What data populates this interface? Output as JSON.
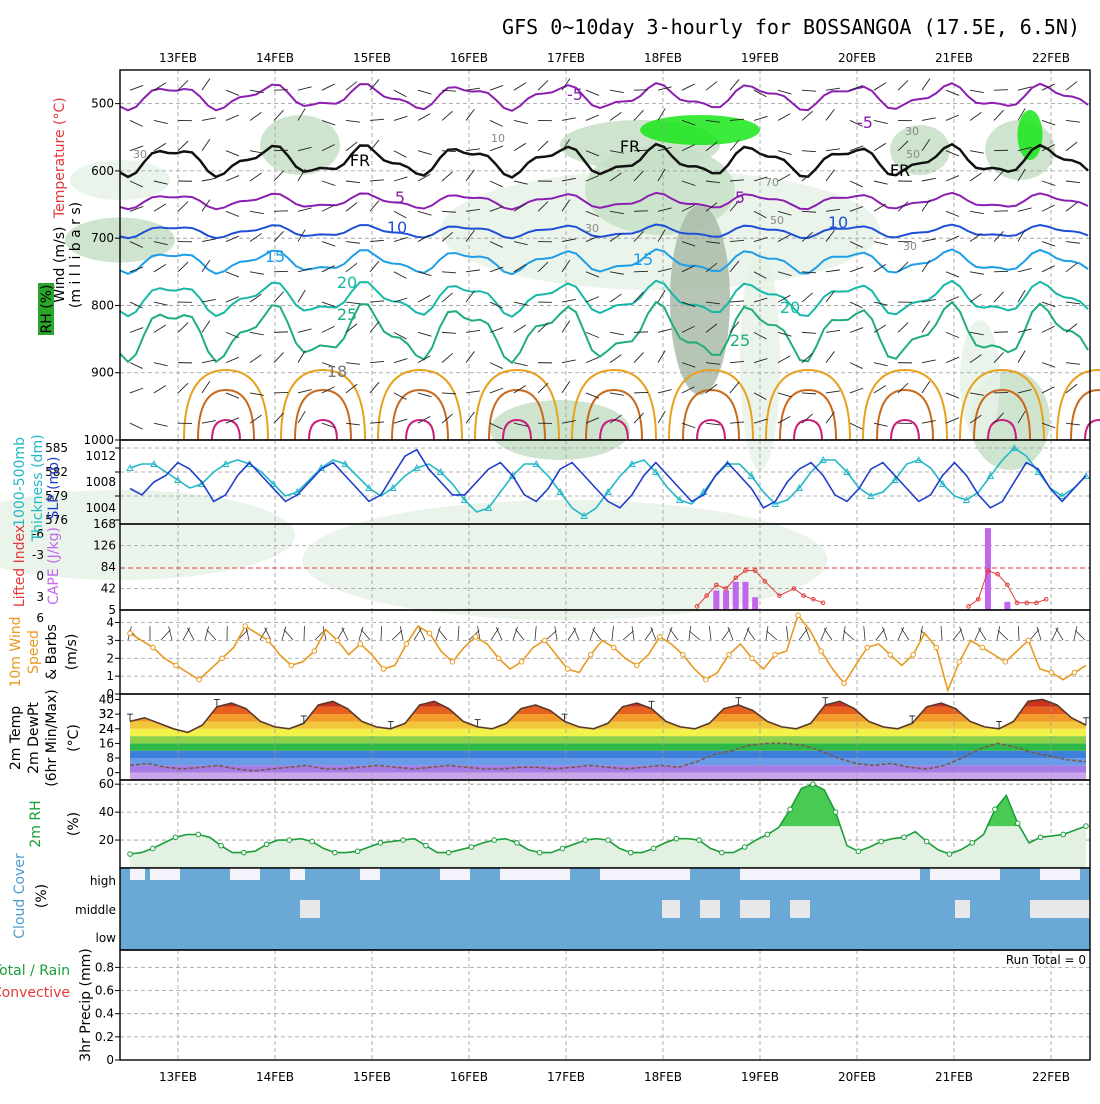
{
  "title": "GFS 0~10day 3-hourly for BOSSANGOA (17.5E, 6.5N)",
  "date_labels": [
    "13FEB",
    "14FEB",
    "15FEB",
    "16FEB",
    "17FEB",
    "18FEB",
    "19FEB",
    "20FEB",
    "21FEB",
    "22FEB"
  ],
  "colors": {
    "rh_light": "#e6f2e6",
    "rh_mid": "#c7dfc7",
    "rh_grey": "#a9bba9",
    "rh_bright": "#19e619",
    "isotherm_purple": "#8a1fb0",
    "isotherm_blue": "#1f4fd6",
    "isotherm_lightblue": "#1e9ee6",
    "isotherm_teal": "#17b8a6",
    "isotherm_green": "#1fae7a",
    "isotherm_orange": "#e6a21e",
    "slp": "#1e3dc8",
    "thickness": "#22b8c8",
    "cape": "#c266ee",
    "lifted": "#e23a3a",
    "wind10": "#e8991f",
    "rh2m": "#1b9e3a",
    "cloud": "#6aa8d6"
  },
  "chart_data": [
    {
      "type": "contour",
      "panel": "upper-air",
      "ylabel_parts": [
        "Wind (m/s)",
        "Temperature (°C)",
        "RH (%)",
        "(m i l l i b a r s)"
      ],
      "ylim": [
        1000,
        450
      ],
      "yticks": [
        500,
        600,
        700,
        800,
        900,
        1000
      ],
      "isotherm_labels": [
        "-5",
        "-5",
        "FR",
        "FR",
        "FR",
        "5",
        "5",
        "10",
        "10",
        "15",
        "15",
        "20",
        "20",
        "25",
        "25",
        "18"
      ],
      "isotherm_levels_hpa": {
        "-5": 490,
        "0": 585,
        "5": 645,
        "10": 690,
        "15": 735,
        "20": 790,
        "25": 840
      },
      "rh_labels": [
        "30",
        "30",
        "10",
        "70",
        "50",
        "50",
        "30",
        "30"
      ]
    },
    {
      "type": "line",
      "panel": "thickness-slp",
      "ylabel_parts": [
        "1000-500mb",
        "Thickness (dm)",
        "SLP (mb)"
      ],
      "thickness_ticks": [
        576,
        579,
        582,
        585
      ],
      "slp_ticks": [
        1004,
        1008,
        1012
      ],
      "series": [
        {
          "name": "SLP (mb)",
          "values": [
            1007,
            1006,
            1008,
            1009,
            1011,
            1010,
            1008,
            1005,
            1006,
            1009,
            1011,
            1009,
            1007,
            1005,
            1006,
            1008,
            1010,
            1011,
            1009,
            1007,
            1005,
            1006,
            1009,
            1012,
            1013,
            1010,
            1008,
            1006,
            1006,
            1008,
            1010,
            1011,
            1009,
            1006,
            1005,
            1007,
            1010,
            1011,
            1009,
            1007,
            1005,
            1004,
            1006,
            1009,
            1011,
            1009,
            1007,
            1005,
            1006,
            1009,
            1011,
            1009,
            1007,
            1004,
            1005,
            1008,
            1010,
            1011,
            1009,
            1006,
            1005,
            1007,
            1010,
            1011,
            1009,
            1007,
            1005,
            1006,
            1009,
            1011,
            1009,
            1006,
            1004,
            1005,
            1008,
            1011,
            1010,
            1007,
            1005,
            1007,
            1009
          ]
        },
        {
          "name": "Thickness (dm)",
          "values": [
            582.5,
            583,
            583,
            582,
            581,
            580,
            580.5,
            582,
            583,
            583.5,
            583,
            582,
            580.5,
            579,
            579.5,
            581,
            582.5,
            583.5,
            583,
            581.5,
            580,
            579,
            580,
            581.5,
            582.5,
            583,
            582,
            580.5,
            578.5,
            577,
            577.5,
            579.5,
            581.5,
            583,
            583,
            581.5,
            579.5,
            577.5,
            576.5,
            577.5,
            579.5,
            581.5,
            583,
            583.5,
            582,
            580,
            578.5,
            578,
            579.5,
            581.5,
            583,
            583,
            581.5,
            579.5,
            578,
            578.5,
            580,
            582,
            583.5,
            583.5,
            582,
            580,
            579,
            579.5,
            581,
            583,
            583.5,
            582.5,
            580.5,
            579,
            578.5,
            579.5,
            581.5,
            583.5,
            585,
            584,
            582,
            580,
            579,
            580,
            581.5
          ]
        }
      ]
    },
    {
      "type": "bar",
      "panel": "cape-lifted",
      "ylabel_parts": [
        "Lifted Index",
        "CAPE (J/kg)"
      ],
      "cape_ticks": [
        42,
        84,
        126,
        168
      ],
      "lifted_ticks": [
        "-6",
        "-3",
        "0",
        "3",
        "6"
      ],
      "series": [
        {
          "name": "CAPE (J/kg)",
          "x": [
            5.6,
            5.7,
            5.8,
            5.9,
            6.0
          ],
          "values": [
            38,
            38,
            55,
            55,
            25
          ]
        },
        {
          "name": "CAPE (J/kg) 21FEB",
          "x": [
            8.4,
            8.6
          ],
          "values": [
            160,
            16
          ]
        },
        {
          "name": "Lifted Index",
          "x": [
            5.4,
            5.5,
            5.6,
            5.7,
            5.8,
            5.9,
            6.0,
            6.1,
            6.25,
            6.4,
            6.5,
            6.6,
            6.7,
            8.2,
            8.3,
            8.4,
            8.5,
            8.6,
            8.7,
            8.8,
            8.9,
            9.0
          ],
          "values": [
            5.5,
            4,
            2.5,
            3,
            1.5,
            0.5,
            0.5,
            2,
            4,
            3,
            4,
            4.5,
            5,
            5.5,
            4.5,
            0.5,
            1,
            2.5,
            5,
            5,
            5,
            4.5
          ]
        }
      ]
    },
    {
      "type": "line",
      "panel": "wind10",
      "ylabel_parts": [
        "10m Wind",
        "Speed",
        "& Barbs",
        "(m/s)"
      ],
      "yticks": [
        0,
        1,
        2,
        3,
        4
      ],
      "series": [
        {
          "name": "10m wind speed (m/s)",
          "values": [
            3.4,
            3,
            2.6,
            2,
            1.6,
            1.2,
            0.8,
            1.4,
            2,
            2.6,
            3.8,
            3.4,
            3,
            2.2,
            1.6,
            1.8,
            2.4,
            3.6,
            3,
            2.2,
            2.8,
            2.2,
            1.4,
            1.6,
            2.8,
            3.8,
            3.4,
            2.4,
            1.8,
            2.6,
            3.2,
            2.8,
            2,
            1.4,
            1.8,
            2.6,
            3,
            2.2,
            1.4,
            1.2,
            2.2,
            3,
            2.6,
            2,
            1.6,
            2.2,
            3.2,
            2.8,
            2.2,
            1.4,
            0.8,
            1.2,
            2.2,
            2.8,
            2,
            1.4,
            2.2,
            2.4,
            4.4,
            3.6,
            2.4,
            1.4,
            0.6,
            1.6,
            2.6,
            2.8,
            2.2,
            1.6,
            2.2,
            3.4,
            2.6,
            0.2,
            1.8,
            3,
            2.6,
            2.2,
            1.8,
            2.4,
            3,
            1.4,
            1.2,
            0.8,
            1.2,
            1.6
          ]
        }
      ]
    },
    {
      "type": "area",
      "panel": "temp2m",
      "ylabel_parts": [
        "2m Temp",
        "2m DewPt",
        "(6hr Min/Max)",
        "(°C)"
      ],
      "yticks": [
        0,
        8,
        16,
        24,
        32,
        40
      ],
      "series": [
        {
          "name": "2m Temp (°C)",
          "values": [
            28,
            30,
            27,
            24,
            22,
            26,
            36,
            38,
            35,
            28,
            25,
            24,
            27,
            37,
            39,
            35,
            28,
            25,
            24,
            27,
            37,
            39,
            35,
            28,
            25,
            24,
            27,
            35,
            37,
            34,
            28,
            25,
            24,
            27,
            36,
            38,
            35,
            28,
            25,
            24,
            27,
            35,
            37,
            34,
            28,
            25,
            24,
            27,
            37,
            39,
            35,
            28,
            25,
            24,
            27,
            36,
            38,
            35,
            28,
            25,
            24,
            28,
            39,
            40,
            37,
            30,
            26
          ]
        },
        {
          "name": "2m DewPt (°C)",
          "values": [
            4,
            5,
            3,
            2,
            3,
            4,
            2,
            1,
            2,
            3,
            4,
            2,
            2,
            3,
            4,
            3,
            2,
            3,
            4,
            3,
            2,
            2,
            3,
            3,
            2,
            3,
            4,
            3,
            2,
            3,
            4,
            3,
            6,
            10,
            12,
            15,
            16,
            16,
            15,
            12,
            8,
            5,
            4,
            5,
            3,
            2,
            4,
            8,
            13,
            16,
            14,
            11,
            9,
            7,
            6
          ]
        }
      ]
    },
    {
      "type": "line",
      "panel": "rh2m",
      "ylabel_parts": [
        "2m RH",
        "(%)"
      ],
      "yticks": [
        20,
        40,
        60
      ],
      "series": [
        {
          "name": "2m RH (%)",
          "values": [
            10,
            11,
            14,
            18,
            22,
            24,
            24,
            22,
            16,
            11,
            11,
            12,
            17,
            20,
            20,
            21,
            19,
            14,
            11,
            11,
            12,
            15,
            18,
            19,
            20,
            21,
            16,
            11,
            11,
            13,
            15,
            18,
            20,
            21,
            18,
            13,
            11,
            11,
            14,
            17,
            20,
            21,
            20,
            14,
            11,
            11,
            14,
            18,
            21,
            21,
            20,
            14,
            11,
            11,
            15,
            20,
            24,
            29,
            42,
            57,
            60,
            56,
            40,
            16,
            12,
            15,
            19,
            21,
            22,
            26,
            19,
            13,
            10,
            13,
            18,
            24,
            42,
            52,
            32,
            18,
            22,
            23,
            24,
            27,
            30
          ]
        }
      ]
    },
    {
      "type": "heatmap",
      "panel": "cloud",
      "ylabel_parts": [
        "Cloud Cover",
        "(%)"
      ],
      "row_labels": [
        "high",
        "middle",
        "low"
      ]
    },
    {
      "type": "bar",
      "panel": "precip",
      "ylabel_parts": [
        "Total / Rain",
        "Convective",
        "3hr Precip (mm)"
      ],
      "yticks": [
        "0",
        "0.2",
        "0.4",
        "0.6",
        "0.8"
      ],
      "run_total": "Run Total = 0",
      "values": []
    }
  ]
}
